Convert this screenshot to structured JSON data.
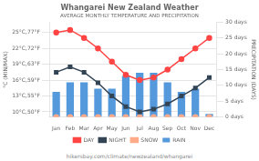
{
  "chart_data": {
    "type": "bar",
    "title": "Whangarei New Zealand Weather",
    "subtitle": "AVERAGE MONTHLY TEMPERATURE AND PRECIPITATION",
    "footer": "hikersbay.com/climate/newzealand/whangarei",
    "categories": [
      "Jan",
      "Feb",
      "Mar",
      "Apr",
      "May",
      "Jun",
      "Jul",
      "Aug",
      "Sep",
      "Oct",
      "Nov",
      "Dec"
    ],
    "series": [
      {
        "name": "DAY",
        "type": "line",
        "color": "#FF4444",
        "marker": "circle",
        "values": [
          25,
          25.5,
          24,
          22,
          19.5,
          17,
          16,
          16.5,
          18,
          20,
          22,
          24
        ]
      },
      {
        "name": "NIGHT",
        "type": "line",
        "color": "#334455",
        "marker": "square",
        "values": [
          17.5,
          18.5,
          17.5,
          15.5,
          13,
          11,
          10,
          10.5,
          11.5,
          13,
          14.5,
          16.5
        ]
      },
      {
        "name": "RAIN",
        "type": "bar",
        "color": "#5599DD",
        "axis": "y2",
        "values": [
          8,
          11,
          11,
          9,
          9,
          13,
          14,
          14,
          11,
          8,
          9,
          1
        ]
      },
      {
        "name": "SNOW",
        "type": "line",
        "line_style": "none",
        "marker": "circle",
        "color": "#FFAA88",
        "axis": "y2",
        "values": [
          0,
          0,
          0,
          0,
          0,
          0,
          0,
          0,
          0,
          0,
          0,
          0
        ]
      }
    ],
    "ylabel": "°C (MIN/MAX)",
    "y2label": "PRECIPITATION (DAYS)",
    "ylim": [
      9,
      27
    ],
    "yticks": [
      {
        "value": 10,
        "label": "10°C,50°F"
      },
      {
        "value": 13,
        "label": "13°C,55°F"
      },
      {
        "value": 16,
        "label": "16°C,59°F"
      },
      {
        "value": 19,
        "label": "19°C,63°F"
      },
      {
        "value": 22,
        "label": "22°C,72°F"
      },
      {
        "value": 25,
        "label": "25°C,77°F"
      }
    ],
    "y2lim": [
      0,
      30
    ],
    "y2ticks": [
      {
        "value": 0,
        "label": "0 days"
      },
      {
        "value": 5,
        "label": "5 days"
      },
      {
        "value": 10,
        "label": "10 days"
      },
      {
        "value": 15,
        "label": "15 days"
      },
      {
        "value": 20,
        "label": "20 days"
      },
      {
        "value": 25,
        "label": "25 days"
      },
      {
        "value": 30,
        "label": "30 days"
      }
    ],
    "grid": true,
    "legend": "bottom"
  }
}
